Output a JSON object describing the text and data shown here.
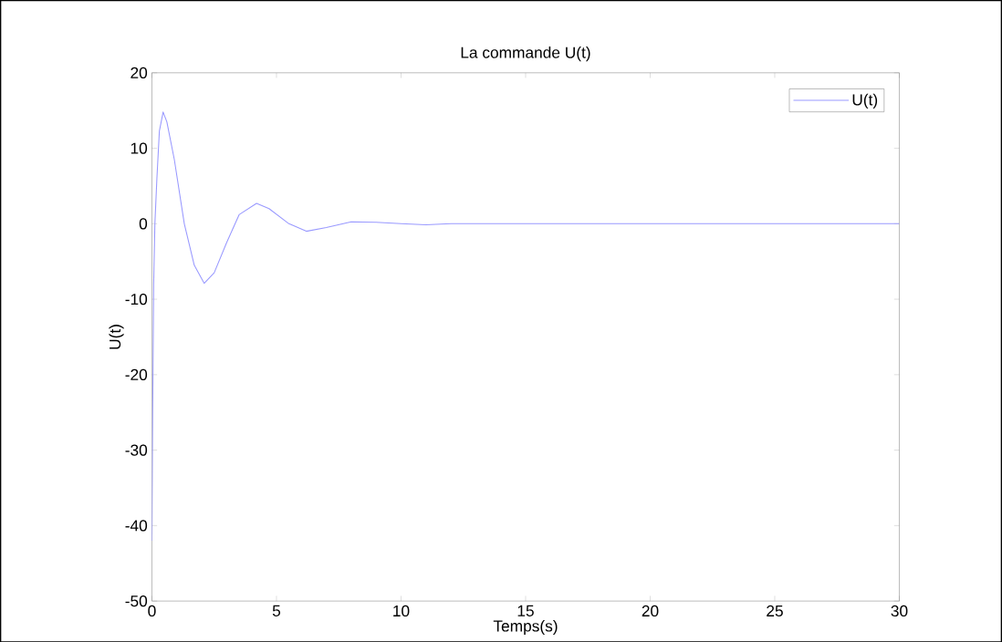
{
  "chart_data": {
    "type": "line",
    "title": "La commande U(t)",
    "xlabel": "Temps(s)",
    "ylabel": "U(t)",
    "x": [
      0,
      0.03,
      0.07,
      0.12,
      0.2,
      0.3,
      0.45,
      0.6,
      0.9,
      1.3,
      1.7,
      2.1,
      2.5,
      3.0,
      3.5,
      4.2,
      4.7,
      5.5,
      6.2,
      7,
      8,
      9,
      10,
      11,
      12,
      15,
      20,
      25,
      30
    ],
    "series": [
      {
        "name": "U(t)",
        "color": "#9999ff",
        "values": [
          -42,
          -25,
          -8,
          0,
          6,
          12.3,
          14.8,
          13.5,
          8.5,
          0,
          -5.5,
          -7.9,
          -6.5,
          -2.5,
          1.2,
          2.7,
          2,
          0,
          -1,
          -0.5,
          0.25,
          0.2,
          0,
          -0.15,
          0,
          0,
          0,
          0,
          0
        ]
      }
    ],
    "xlim": [
      0,
      30
    ],
    "ylim": [
      -50,
      20
    ],
    "xticks": [
      0,
      5,
      10,
      15,
      20,
      25,
      30
    ],
    "yticks": [
      -50,
      -40,
      -30,
      -20,
      -10,
      0,
      10,
      20
    ],
    "legend": "top right",
    "grid": false,
    "marker": "none",
    "line_style": "solid"
  }
}
